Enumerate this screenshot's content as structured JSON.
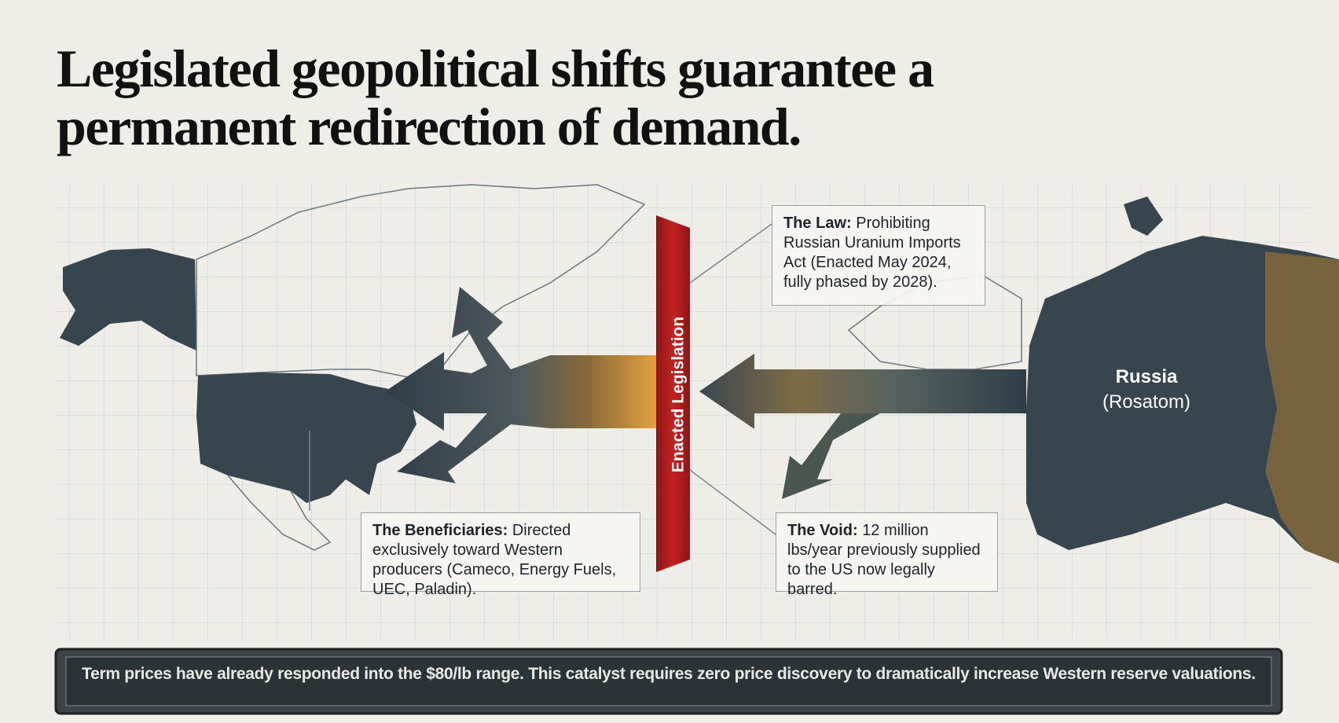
{
  "title": "Legislated geopolitical shifts guarantee a permanent redirection of demand.",
  "barrier": {
    "label": "Enacted Legislation"
  },
  "source": {
    "name": "Russia",
    "subtitle": "(Rosatom)"
  },
  "callouts": [
    {
      "heading": "The Law:",
      "text": "Prohibiting Russian Uranium Imports Act (Enacted May 2024, fully phased by 2028)."
    },
    {
      "heading": "The Beneficiaries:",
      "text": "Directed exclusively toward Western producers (Cameco, Energy Fuels, UEC, Paladin)."
    },
    {
      "heading": "The Void:",
      "text": "12 million lbs/year previously supplied to the US now legally barred."
    }
  ],
  "footer": "Term prices have already responded into the $80/lb range. This catalyst requires zero price discovery to dramatically increase Western reserve valuations."
}
